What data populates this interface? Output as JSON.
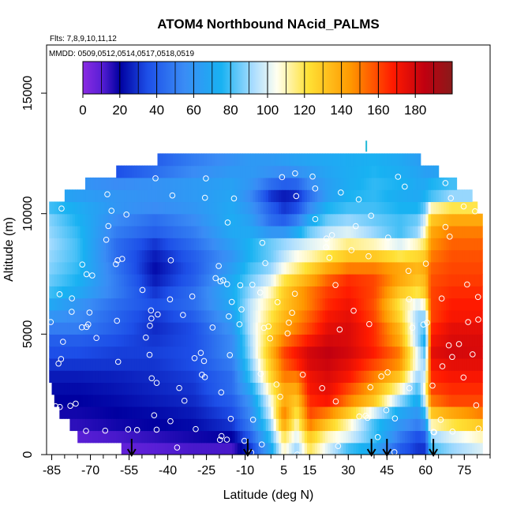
{
  "chart_data": {
    "type": "heatmap",
    "title": "ATOM4 Northbound NAcid_PALMS",
    "subtitle_flights": "Flts: 7,8,9,10,11,12",
    "subtitle_dates": "MMDD: 0509,0512,0514,0517,0518,0519",
    "xlabel": "Latitude (deg N)",
    "ylabel": "Altitude (m)",
    "xlim": [
      -87,
      85
    ],
    "ylim": [
      0,
      17000
    ],
    "x_ticks": [
      -85,
      -70,
      -55,
      -40,
      -25,
      -10,
      5,
      15,
      30,
      45,
      60,
      75
    ],
    "x_tick_labels": [
      "-85",
      "-70",
      "-55",
      "-40",
      "-25",
      "-10",
      "5",
      "15",
      "30",
      "45",
      "60",
      "75"
    ],
    "y_ticks": [
      0,
      5000,
      10000,
      15000
    ],
    "y_tick_labels": [
      "0",
      "5000",
      "10000",
      "15000"
    ],
    "colorbar": {
      "range": [
        0,
        200
      ],
      "ticks": [
        0,
        20,
        40,
        60,
        80,
        100,
        120,
        140,
        160,
        180
      ],
      "tick_labels": [
        "0",
        "20",
        "40",
        "60",
        "80",
        "100",
        "120",
        "140",
        "160",
        "180"
      ],
      "stops": [
        {
          "value": 0,
          "color": "#8a2be2"
        },
        {
          "value": 10,
          "color": "#5a1fd6"
        },
        {
          "value": 20,
          "color": "#0000a0"
        },
        {
          "value": 35,
          "color": "#1d4fe8"
        },
        {
          "value": 55,
          "color": "#3a8cf5"
        },
        {
          "value": 75,
          "color": "#18b2f2"
        },
        {
          "value": 92,
          "color": "#a8dcff"
        },
        {
          "value": 105,
          "color": "#fffff0"
        },
        {
          "value": 122,
          "color": "#ffe135"
        },
        {
          "value": 145,
          "color": "#ff9800"
        },
        {
          "value": 168,
          "color": "#ff1a00"
        },
        {
          "value": 185,
          "color": "#c00010"
        },
        {
          "value": 200,
          "color": "#8a1a1a"
        }
      ]
    },
    "grid": false,
    "field": {
      "alt_bands": [
        0,
        500,
        1000,
        1500,
        2000,
        2500,
        3000,
        3500,
        4000,
        4500,
        5000,
        5500,
        6000,
        6500,
        7000,
        7500,
        8000,
        8500,
        9000,
        9500,
        10000,
        10500,
        11000,
        11500,
        12000
      ],
      "band_lat_start": [
        -58,
        -75,
        -78,
        -82,
        -84,
        -85,
        -86,
        -86,
        -86,
        -86,
        -86,
        -86,
        -86,
        -86,
        -86,
        -86,
        -86,
        -86,
        -86,
        -86,
        -86,
        -80,
        -72,
        -60,
        -44
      ],
      "band_lat_end": [
        82,
        82,
        82,
        82,
        82,
        82,
        82,
        82,
        82,
        82,
        82,
        82,
        82,
        82,
        82,
        82,
        82,
        82,
        82,
        82,
        80,
        78,
        72,
        65,
        58
      ],
      "lat_knots": [
        -86,
        -75,
        -60,
        -45,
        -30,
        -15,
        -8,
        0,
        5,
        10,
        15,
        22,
        30,
        40,
        50,
        57,
        60,
        62,
        70,
        82
      ],
      "values": [
        [
          5,
          5,
          8,
          10,
          12,
          12,
          30,
          70,
          110,
          90,
          120,
          100,
          80,
          70,
          40,
          30,
          30,
          80,
          90,
          100
        ],
        [
          10,
          10,
          12,
          15,
          18,
          20,
          40,
          80,
          120,
          100,
          130,
          110,
          100,
          80,
          50,
          35,
          40,
          90,
          100,
          110
        ],
        [
          15,
          15,
          18,
          20,
          22,
          30,
          50,
          90,
          140,
          110,
          150,
          130,
          110,
          80,
          60,
          50,
          60,
          110,
          120,
          130
        ],
        [
          18,
          18,
          20,
          22,
          25,
          35,
          55,
          100,
          150,
          120,
          160,
          150,
          130,
          100,
          70,
          60,
          80,
          130,
          140,
          150
        ],
        [
          20,
          20,
          22,
          25,
          28,
          40,
          60,
          105,
          140,
          130,
          165,
          170,
          150,
          130,
          90,
          70,
          100,
          150,
          160,
          160
        ],
        [
          22,
          22,
          24,
          27,
          30,
          45,
          70,
          115,
          140,
          140,
          170,
          175,
          160,
          140,
          110,
          80,
          110,
          160,
          165,
          165
        ],
        [
          25,
          25,
          26,
          28,
          32,
          45,
          80,
          125,
          150,
          150,
          172,
          178,
          170,
          150,
          130,
          90,
          100,
          165,
          170,
          170
        ],
        [
          30,
          30,
          30,
          30,
          35,
          50,
          85,
          130,
          155,
          165,
          178,
          182,
          175,
          160,
          145,
          100,
          90,
          170,
          175,
          175
        ],
        [
          35,
          35,
          32,
          32,
          35,
          55,
          90,
          135,
          160,
          170,
          180,
          185,
          180,
          168,
          150,
          100,
          80,
          175,
          180,
          178
        ],
        [
          40,
          40,
          35,
          30,
          35,
          55,
          92,
          130,
          150,
          160,
          170,
          180,
          178,
          165,
          140,
          90,
          70,
          170,
          178,
          178
        ],
        [
          50,
          50,
          40,
          28,
          35,
          60,
          95,
          125,
          140,
          150,
          160,
          175,
          178,
          165,
          135,
          90,
          80,
          165,
          175,
          175
        ],
        [
          60,
          55,
          42,
          30,
          40,
          65,
          95,
          120,
          135,
          145,
          155,
          170,
          175,
          160,
          125,
          90,
          90,
          160,
          170,
          170
        ],
        [
          70,
          60,
          45,
          35,
          45,
          70,
          95,
          115,
          130,
          140,
          150,
          165,
          172,
          158,
          120,
          100,
          110,
          160,
          168,
          168
        ],
        [
          80,
          70,
          50,
          30,
          45,
          72,
          90,
          110,
          128,
          140,
          150,
          162,
          168,
          160,
          130,
          120,
          130,
          160,
          165,
          165
        ],
        [
          85,
          75,
          50,
          25,
          40,
          70,
          85,
          100,
          120,
          130,
          140,
          155,
          165,
          160,
          140,
          130,
          135,
          158,
          162,
          162
        ],
        [
          88,
          78,
          48,
          22,
          38,
          65,
          80,
          90,
          105,
          115,
          125,
          140,
          150,
          150,
          140,
          135,
          140,
          155,
          160,
          160
        ],
        [
          90,
          80,
          45,
          25,
          40,
          60,
          75,
          85,
          95,
          105,
          110,
          120,
          130,
          130,
          120,
          125,
          130,
          150,
          158,
          158
        ],
        [
          92,
          80,
          45,
          30,
          45,
          65,
          75,
          85,
          90,
          95,
          100,
          105,
          115,
          110,
          100,
          110,
          120,
          145,
          155,
          155
        ],
        [
          90,
          78,
          50,
          40,
          50,
          70,
          70,
          60,
          60,
          70,
          85,
          95,
          100,
          90,
          80,
          90,
          110,
          140,
          150,
          150
        ],
        [
          88,
          75,
          55,
          45,
          55,
          72,
          65,
          45,
          40,
          50,
          70,
          85,
          90,
          85,
          80,
          85,
          100,
          130,
          140,
          140
        ],
        [
          80,
          72,
          60,
          55,
          60,
          70,
          60,
          40,
          30,
          35,
          55,
          75,
          80,
          80,
          75,
          75,
          85,
          110,
          120,
          120
        ],
        [
          70,
          65,
          60,
          58,
          62,
          68,
          55,
          30,
          25,
          28,
          45,
          65,
          75,
          78,
          72,
          70,
          75,
          80,
          90,
          90
        ],
        [
          65,
          60,
          55,
          58,
          62,
          66,
          60,
          45,
          40,
          42,
          55,
          65,
          72,
          78,
          75,
          70,
          70,
          75,
          80,
          80
        ],
        [
          60,
          50,
          35,
          45,
          55,
          62,
          62,
          58,
          55,
          58,
          62,
          68,
          72,
          76,
          72,
          68,
          65,
          65,
          70,
          70
        ],
        [
          55,
          45,
          30,
          40,
          50,
          58,
          62,
          62,
          64,
          66,
          68,
          70,
          72,
          74,
          70,
          65,
          62,
          60,
          60,
          60
        ]
      ]
    },
    "arrows_lat": [
      -54,
      -9,
      39,
      45,
      63
    ],
    "marker_lat": 37,
    "marker_alt": 12800,
    "marker_color": "#1fb8d8"
  }
}
